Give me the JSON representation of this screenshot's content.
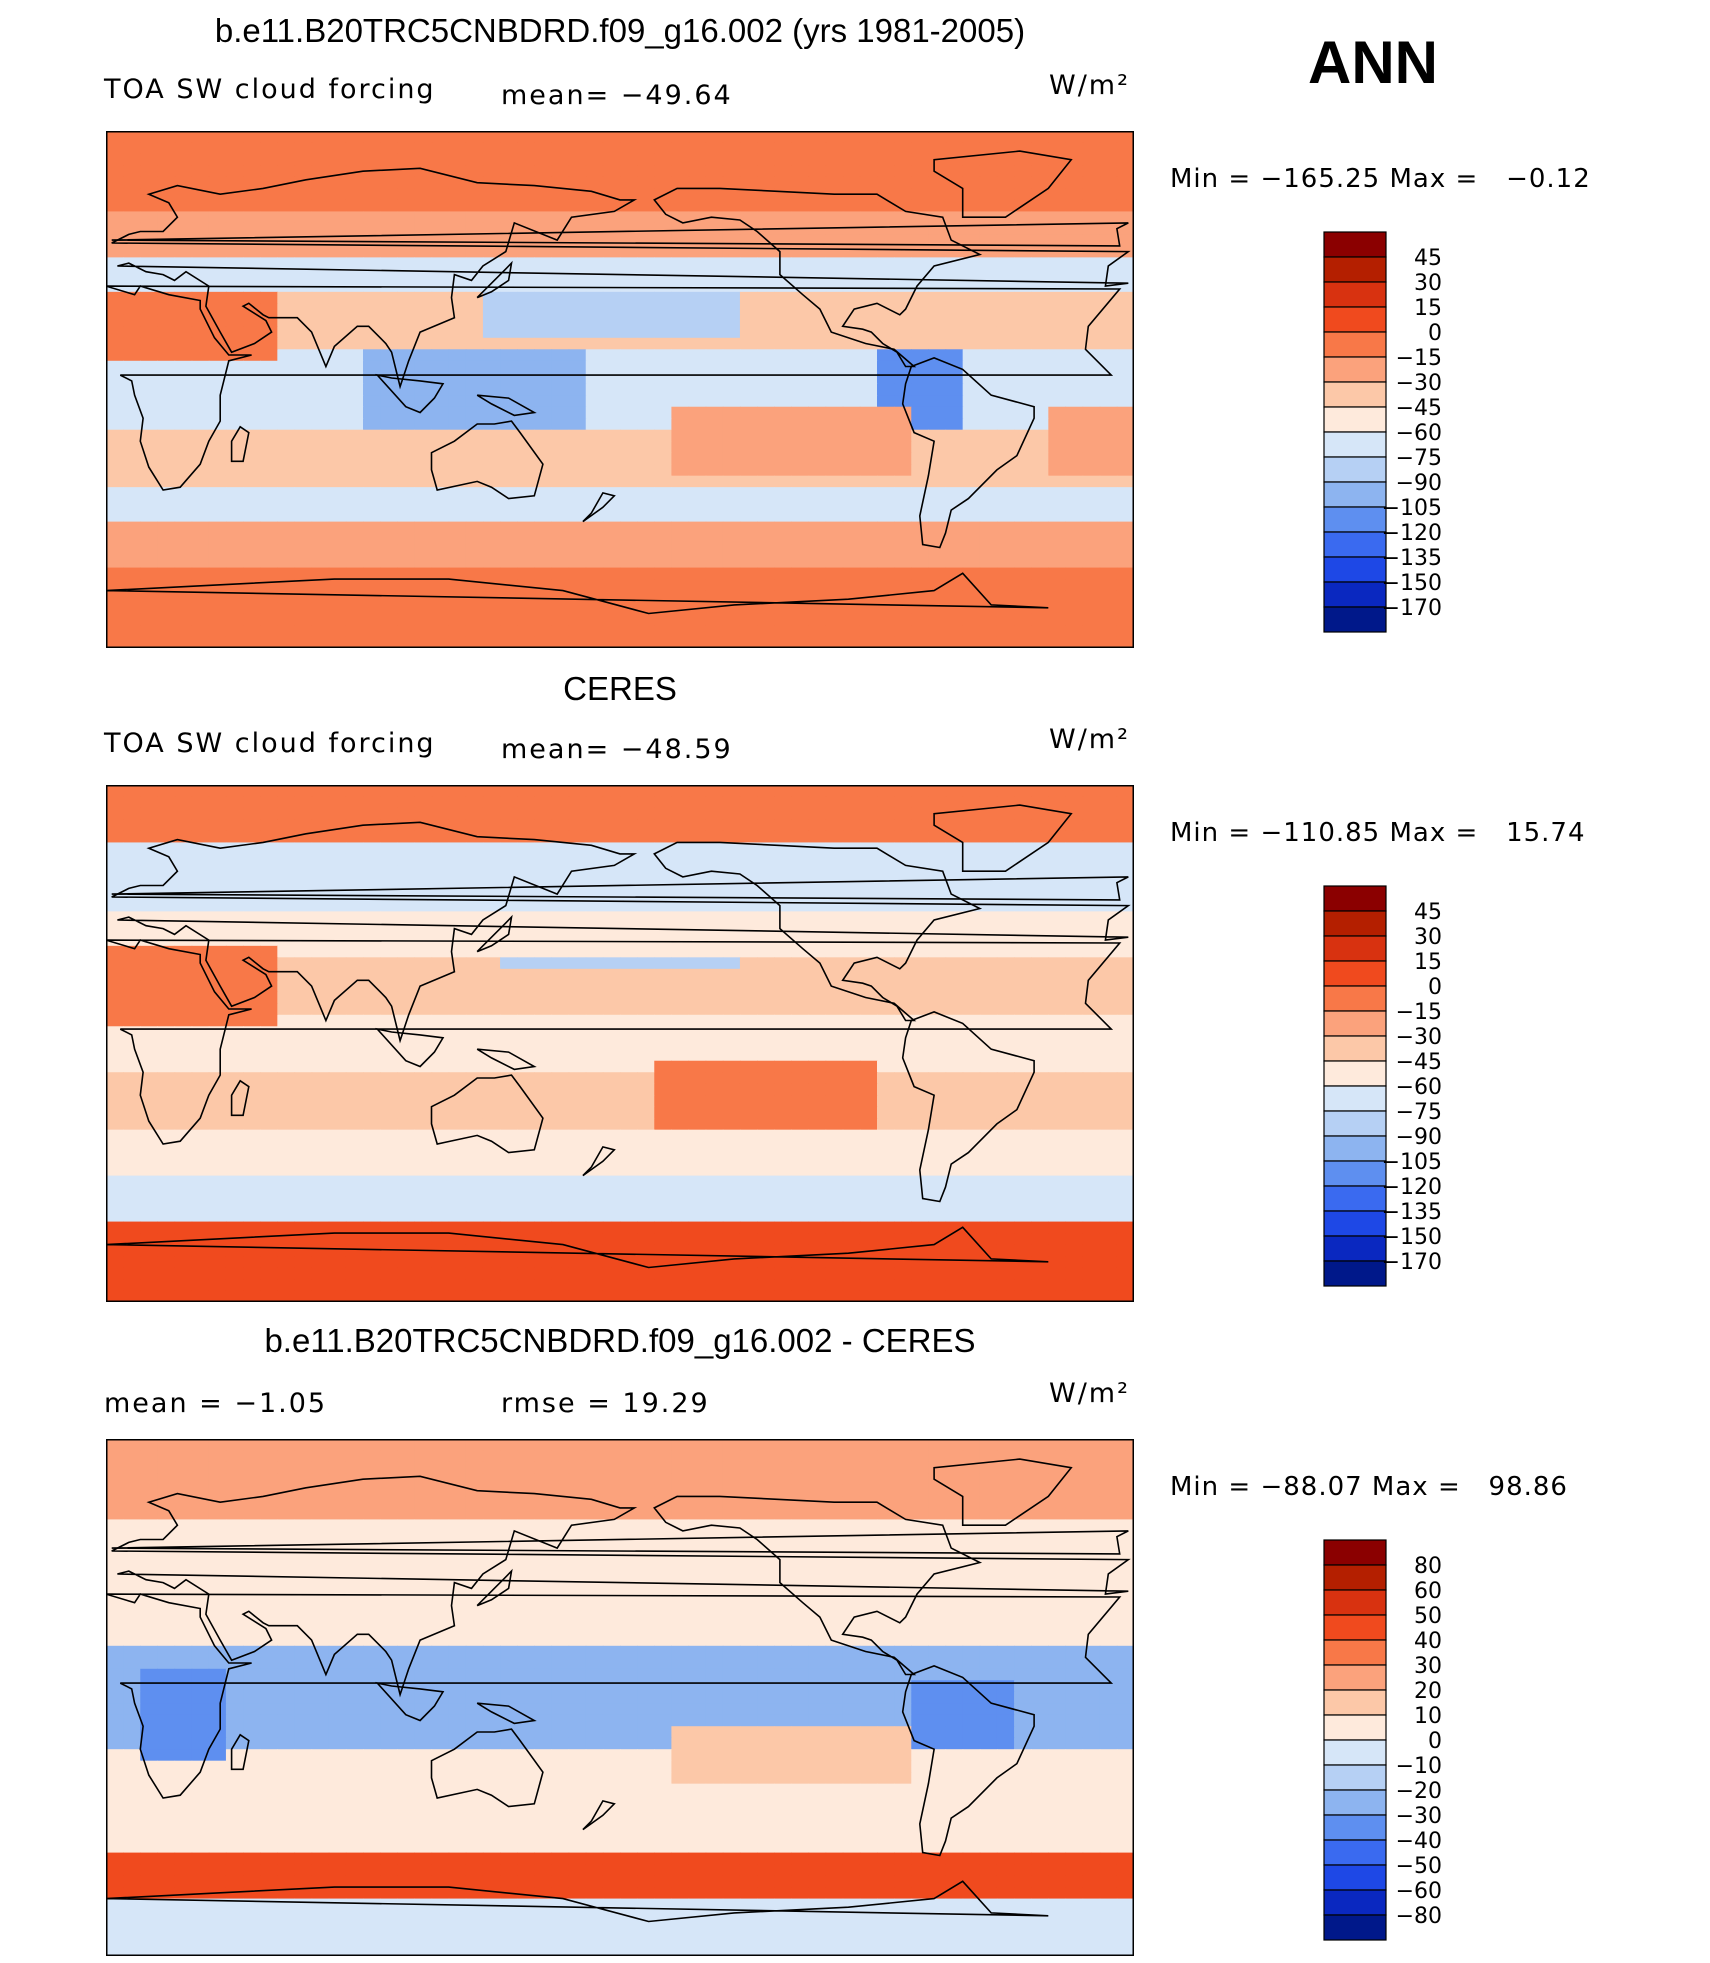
{
  "season_label": "ANN",
  "units": "W/m²",
  "colorbar_swcf": {
    "labels": [
      "45",
      "30",
      "15",
      "0",
      "−15",
      "−30",
      "−45",
      "−60",
      "−75",
      "−90",
      "−105",
      "−120",
      "−135",
      "−150",
      "−170"
    ],
    "colors": [
      "#8b0000",
      "#b41f00",
      "#d83210",
      "#f04a1e",
      "#f87848",
      "#fba27c",
      "#fcc8a8",
      "#feeadc",
      "#d6e6f8",
      "#b6d0f4",
      "#8db4f0",
      "#5e8ff0",
      "#3a6af0",
      "#1e48e6",
      "#0a28c0",
      "#00188a"
    ]
  },
  "colorbar_diff": {
    "labels": [
      "80",
      "60",
      "50",
      "40",
      "30",
      "20",
      "10",
      "0",
      "−10",
      "−20",
      "−30",
      "−40",
      "−50",
      "−60",
      "−80"
    ],
    "colors": [
      "#8b0000",
      "#b41f00",
      "#d83210",
      "#f04a1e",
      "#f87848",
      "#fba27c",
      "#fcc8a8",
      "#feeadc",
      "#d6e6f8",
      "#b6d0f4",
      "#8db4f0",
      "#5e8ff0",
      "#3a6af0",
      "#1e48e6",
      "#0a28c0",
      "#00188a"
    ]
  },
  "panels": [
    {
      "title": "b.e11.B20TRC5CNBDRD.f09_g16.002 (yrs 1981-2005)",
      "left_label": "TOA SW cloud forcing",
      "center_label": "mean= −49.64",
      "units_label": "W/m²",
      "minmax": "Min = −165.25 Max =   −0.12"
    },
    {
      "title": "CERES",
      "left_label": "TOA SW cloud forcing",
      "center_label": "mean= −48.59",
      "units_label": "W/m²",
      "minmax": "Min = −110.85 Max =   15.74"
    },
    {
      "title": "b.e11.B20TRC5CNBDRD.f09_g16.002 - CERES",
      "left_label": "mean =   −1.05",
      "center_label": "rmse =   19.29",
      "units_label": "W/m²",
      "minmax": "Min = −88.07 Max =   98.86"
    }
  ],
  "chart_data": [
    {
      "type": "heatmap",
      "title": "b.e11.B20TRC5CNBDRD.f09_g16.002 (yrs 1981-2005)",
      "subtitle": "TOA SW cloud forcing",
      "units": "W/m²",
      "mean": -49.64,
      "min": -165.25,
      "max": -0.12,
      "levels": [
        -170,
        -150,
        -135,
        -120,
        -105,
        -90,
        -75,
        -60,
        -45,
        -30,
        -15,
        0,
        15,
        30,
        45
      ]
    },
    {
      "type": "heatmap",
      "title": "CERES",
      "subtitle": "TOA SW cloud forcing",
      "units": "W/m²",
      "mean": -48.59,
      "min": -110.85,
      "max": 15.74,
      "levels": [
        -170,
        -150,
        -135,
        -120,
        -105,
        -90,
        -75,
        -60,
        -45,
        -30,
        -15,
        0,
        15,
        30,
        45
      ]
    },
    {
      "type": "heatmap",
      "title": "b.e11.B20TRC5CNBDRD.f09_g16.002 - CERES",
      "units": "W/m²",
      "mean": -1.05,
      "rmse": 19.29,
      "min": -88.07,
      "max": 98.86,
      "levels": [
        -80,
        -60,
        -50,
        -40,
        -30,
        -20,
        -10,
        0,
        10,
        20,
        30,
        40,
        50,
        60,
        80
      ]
    }
  ]
}
